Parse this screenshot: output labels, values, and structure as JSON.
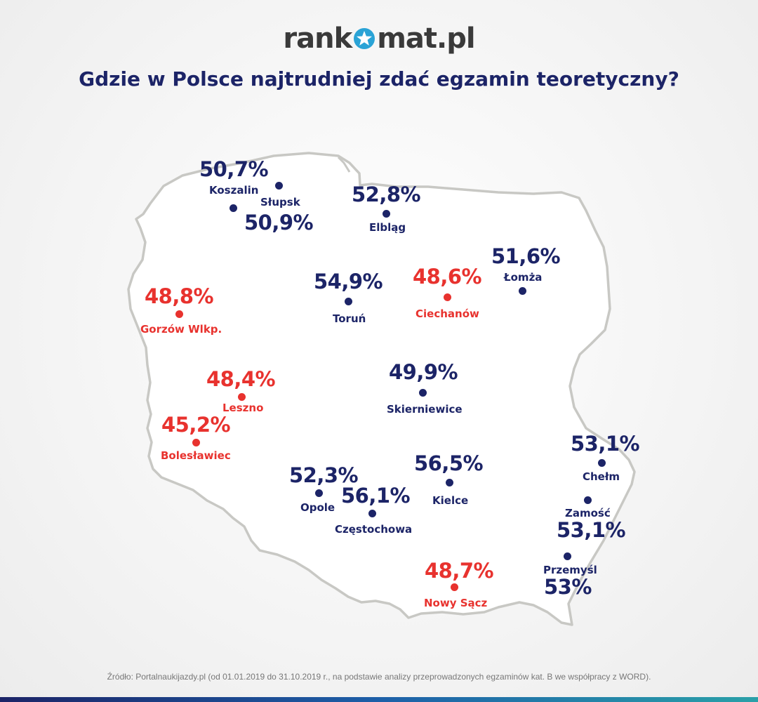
{
  "header": {
    "logo_left": "rank",
    "logo_right": "mat.pl",
    "title": "Gdzie w Polsce najtrudniej zdać egzamin teoretyczny?"
  },
  "colors": {
    "pass_normal": "#1c2467",
    "pass_low": "#e8322e",
    "map_outline": "#c8c8c4",
    "map_fill": "#ffffff"
  },
  "cities": [
    {
      "name": "Koszalin",
      "value": "50,7%",
      "low": false
    },
    {
      "name": "Słupsk",
      "value": "50,9%",
      "low": false
    },
    {
      "name": "Elbląg",
      "value": "52,8%",
      "low": false
    },
    {
      "name": "Łomża",
      "value": "51,6%",
      "low": false
    },
    {
      "name": "Toruń",
      "value": "54,9%",
      "low": false
    },
    {
      "name": "Ciechanów",
      "value": "48,6%",
      "low": true
    },
    {
      "name": "Gorzów Wlkp.",
      "value": "48,8%",
      "low": true
    },
    {
      "name": "Leszno",
      "value": "48,4%",
      "low": true
    },
    {
      "name": "Bolesławiec",
      "value": "45,2%",
      "low": true
    },
    {
      "name": "Skierniewice",
      "value": "49,9%",
      "low": false
    },
    {
      "name": "Opole",
      "value": "52,3%",
      "low": false
    },
    {
      "name": "Częstochowa",
      "value": "56,1%",
      "low": false
    },
    {
      "name": "Kielce",
      "value": "56,5%",
      "low": false
    },
    {
      "name": "Chełm",
      "value": "53,1%",
      "low": false
    },
    {
      "name": "Zamość",
      "value": "53,1%",
      "low": false
    },
    {
      "name": "Przemyśl",
      "value": "53%",
      "low": false
    },
    {
      "name": "Nowy Sącz",
      "value": "48,7%",
      "low": true
    }
  ],
  "footer": {
    "source": "Źródło: Portalnaukijazdy.pl (od 01.01.2019 do 31.10.2019 r., na podstawie analizy przeprowadzonych egzaminów kat. B we współpracy z WORD)."
  }
}
